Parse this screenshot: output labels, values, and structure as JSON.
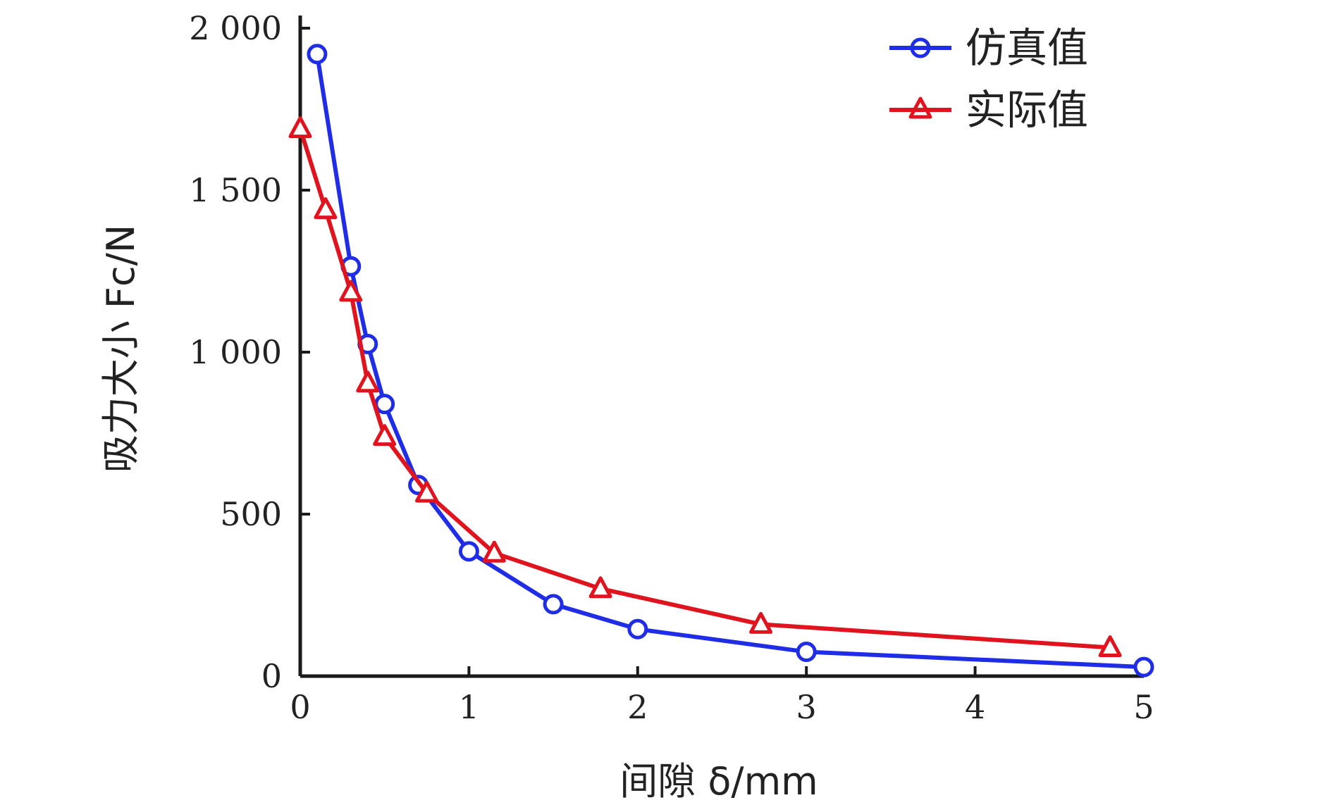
{
  "chart_data": {
    "type": "line",
    "xlabel": "间隙 δ/mm",
    "ylabel": "吸力大小 Fc/N",
    "xlim": [
      0,
      5
    ],
    "ylim": [
      0,
      2000
    ],
    "x_ticks": [
      "0",
      "1",
      "2",
      "3",
      "4",
      "5"
    ],
    "y_ticks": [
      "0",
      "500",
      "1 000",
      "1 500",
      "2 000"
    ],
    "grid": false,
    "legend_position": "top-right",
    "series": [
      {
        "name": "仿真值",
        "color": "#1f2ee6",
        "marker": "circle",
        "x": [
          0.1,
          0.3,
          0.4,
          0.5,
          0.7,
          1.0,
          1.5,
          2.0,
          3.0,
          5.0
        ],
        "y": [
          1920,
          1265,
          1025,
          840,
          590,
          385,
          222,
          145,
          75,
          28
        ]
      },
      {
        "name": "实际值",
        "color": "#e0141e",
        "marker": "triangle",
        "x": [
          0.0,
          0.15,
          0.3,
          0.4,
          0.5,
          0.75,
          1.15,
          1.78,
          2.73,
          4.8
        ],
        "y": [
          1690,
          1440,
          1185,
          905,
          740,
          565,
          380,
          270,
          160,
          88
        ]
      }
    ]
  }
}
